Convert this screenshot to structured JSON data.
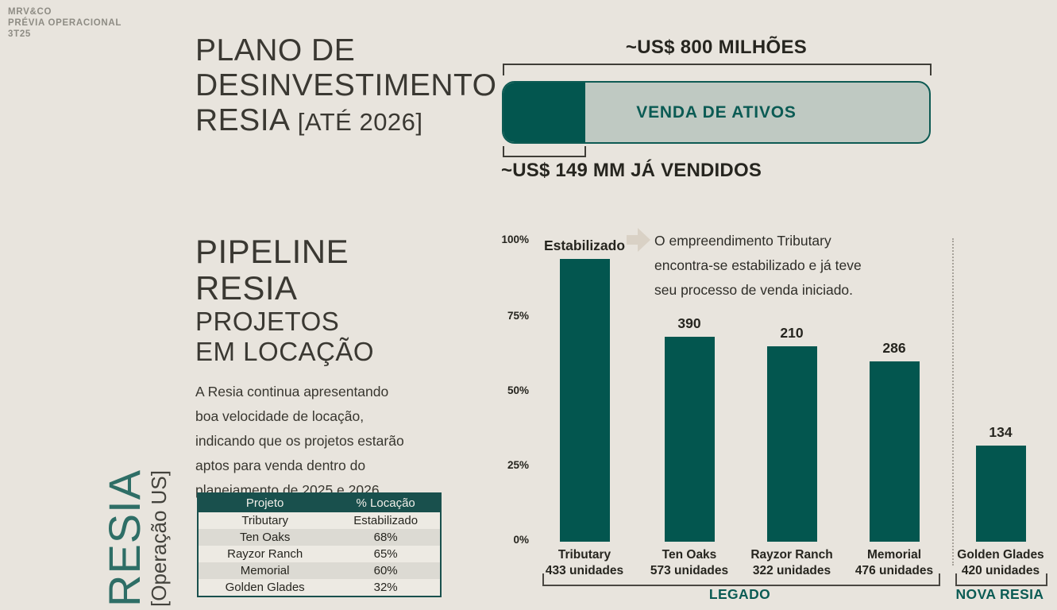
{
  "meta": {
    "line1": "MRV&CO",
    "line2": "PRÉVIA OPERACIONAL",
    "line3": "3T25"
  },
  "divestment": {
    "title_line1": "PLANO DE",
    "title_line2": "DESINVESTIMENTO",
    "title_line3": "RESIA",
    "title_line3_small": "[ATÉ 2026]",
    "total_label": "~US$ 800 MILHÕES",
    "bar_label": "VENDA DE ATIVOS",
    "sold_label": "~US$ 149 MM JÁ VENDIDOS",
    "sold_pct": 19
  },
  "pipeline": {
    "title_line1": "PIPELINE",
    "title_line2": "RESIA",
    "subtitle_line1": "PROJETOS",
    "subtitle_line2": "EM LOCAÇÃO",
    "paragraph": "A Resia continua apresentando boa velocidade de locação, indicando que os projetos estarão aptos para venda dentro do planejamento de 2025 e 2026."
  },
  "vertical_label": {
    "brand": "RESIA",
    "sub": "[Operação US]"
  },
  "table": {
    "headers": [
      "Projeto",
      "% Locação"
    ],
    "rows": [
      [
        "Tributary",
        "Estabilizado"
      ],
      [
        "Ten Oaks",
        "68%"
      ],
      [
        "Rayzor Ranch",
        "65%"
      ],
      [
        "Memorial",
        "60%"
      ],
      [
        "Golden Glades",
        "32%"
      ]
    ]
  },
  "annotation": {
    "text": "O empreendimento Tributary encontra-se estabilizado e já teve seu processo de venda iniciado."
  },
  "chart_data": {
    "type": "bar",
    "title": "Pipeline Resia — Projetos em Locação",
    "categories": [
      "Tributary",
      "Ten Oaks",
      "Rayzor Ranch",
      "Memorial",
      "Golden Glades"
    ],
    "values_pct": [
      94,
      68,
      65,
      60,
      32
    ],
    "bar_top_labels": [
      "Estabilizado",
      "390",
      "210",
      "286",
      "134"
    ],
    "units_labels": [
      "433 unidades",
      "573 unidades",
      "322 unidades",
      "476 unidades",
      "420 unidades"
    ],
    "yticks": [
      "100%",
      "75%",
      "50%",
      "25%",
      "0%"
    ],
    "ylim": [
      0,
      100
    ],
    "grid": false,
    "groups": [
      {
        "label": "LEGADO",
        "categories": [
          "Tributary",
          "Ten Oaks",
          "Rayzor Ranch",
          "Memorial"
        ]
      },
      {
        "label": "NOVA RESIA",
        "categories": [
          "Golden Glades"
        ]
      }
    ]
  },
  "colors": {
    "background": "#e8e4dd",
    "bar_teal": "#03564f",
    "track_sage": "#bfc9c2",
    "teal_text": "#0b5b54",
    "table_header": "#19504d",
    "dark_text": "#26251f",
    "meta_gray": "#8e8c84",
    "brand_teal": "#2e6e66",
    "arrow_beige": "#d9d1c5"
  }
}
